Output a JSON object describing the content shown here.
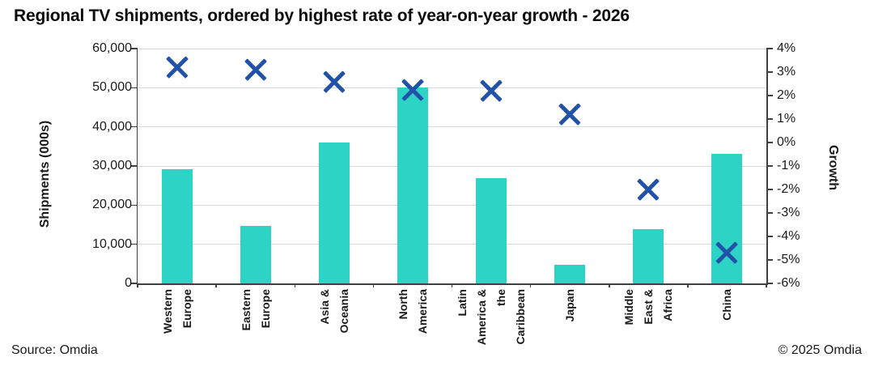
{
  "title": "Regional TV shipments, ordered by highest rate of year-on-year growth - 2026",
  "footer": {
    "source": "Source: Omdia",
    "copyright": "© 2025 Omdia"
  },
  "chart_data": {
    "type": "bar",
    "subtype": "bar-and-scatter-combo-dual-axis",
    "title": "Regional TV shipments, ordered by highest rate of year-on-year growth - 2026",
    "categories": [
      "Western Europe",
      "Eastern Europe",
      "Asia & Oceania",
      "North America",
      "Latin America & the Caribbean",
      "Japan",
      "Middle East & Africa",
      "China"
    ],
    "category_label_lines": [
      [
        "Western",
        "Europe"
      ],
      [
        "Eastern",
        "Europe"
      ],
      [
        "Asia &",
        "Oceania"
      ],
      [
        "North",
        "America"
      ],
      [
        "Latin",
        "America &",
        "the",
        "Caribbean"
      ],
      [
        "Japan"
      ],
      [
        "Middle",
        "East &",
        "Africa"
      ],
      [
        "China"
      ]
    ],
    "series": [
      {
        "name": "Shipments (000s)",
        "type": "bar",
        "axis": "left",
        "values": [
          29100,
          14700,
          36100,
          50000,
          27000,
          4800,
          13900,
          33100
        ]
      },
      {
        "name": "Growth",
        "type": "scatter",
        "marker": "x",
        "axis": "right",
        "values_pct": [
          3.2,
          3.1,
          2.6,
          2.25,
          2.2,
          1.2,
          -2.0,
          -4.7
        ]
      }
    ],
    "left_axis": {
      "label": "Shipments (000s)",
      "min": 0,
      "max": 60000,
      "step": 10000,
      "tick_labels": [
        "60,000",
        "50,000",
        "40,000",
        "30,000",
        "20,000",
        "10,000",
        "0"
      ]
    },
    "right_axis": {
      "label": "Growth",
      "min": -6,
      "max": 4,
      "step": 1,
      "tick_labels": [
        "4%",
        "3%",
        "2%",
        "1%",
        "0%",
        "-1%",
        "-2%",
        "-3%",
        "-4%",
        "-5%",
        "-6%"
      ]
    },
    "grid": "horizontal-on",
    "legend": "none",
    "colors": {
      "bar": "#2dd3c4",
      "marker": "#2152a8",
      "gridline": "#d9d9d9",
      "axis": "#404040"
    }
  }
}
